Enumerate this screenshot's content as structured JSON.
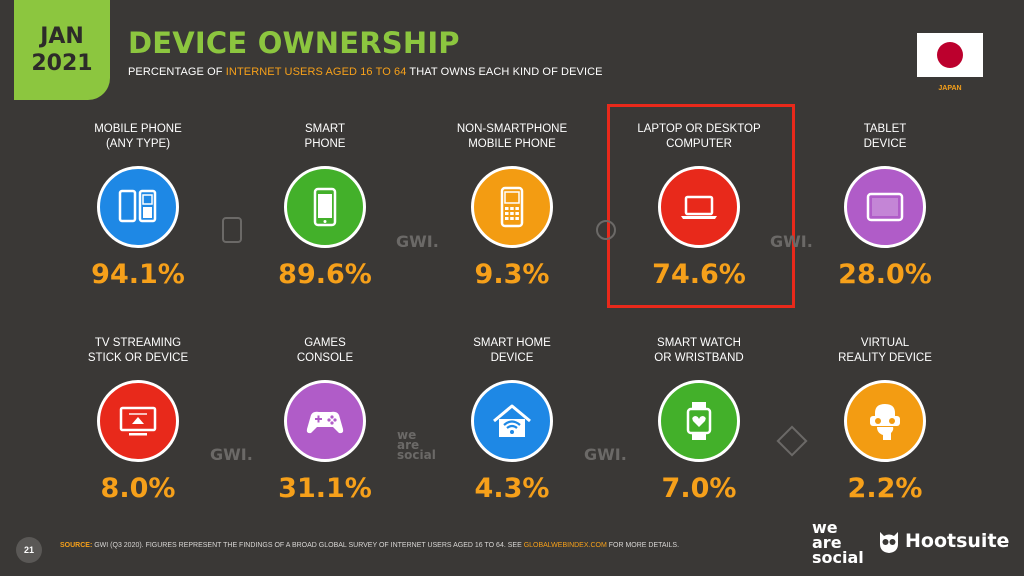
{
  "header": {
    "month": "JAN",
    "year": "2021",
    "title": "DEVICE OWNERSHIP",
    "subtitle_pre": "PERCENTAGE OF ",
    "subtitle_hl": "INTERNET USERS AGED 16 TO 64",
    "subtitle_post": " THAT OWNS EACH KIND OF DEVICE",
    "country": "JAPAN"
  },
  "colors": {
    "accent_green": "#8cc63f",
    "accent_orange": "#f6a01a",
    "highlight_red": "#e8291b",
    "background": "#3a3836"
  },
  "devices": [
    {
      "label1": "MOBILE PHONE",
      "label2": "(ANY TYPE)",
      "value": "94.1%",
      "color": "#1e88e5",
      "icon": "mobile-phones-icon"
    },
    {
      "label1": "SMART",
      "label2": "PHONE",
      "value": "89.6%",
      "color": "#43b02a",
      "icon": "smartphone-icon"
    },
    {
      "label1": "NON-SMARTPHONE",
      "label2": "MOBILE PHONE",
      "value": "9.3%",
      "color": "#f39c12",
      "icon": "feature-phone-icon"
    },
    {
      "label1": "LAPTOP OR DESKTOP",
      "label2": "COMPUTER",
      "value": "74.6%",
      "color": "#e8291b",
      "icon": "laptop-icon"
    },
    {
      "label1": "TABLET",
      "label2": "DEVICE",
      "value": "28.0%",
      "color": "#b05cc8",
      "icon": "tablet-icon"
    },
    {
      "label1": "TV STREAMING",
      "label2": "STICK OR DEVICE",
      "value": "8.0%",
      "color": "#e8291b",
      "icon": "tv-streaming-icon"
    },
    {
      "label1": "GAMES",
      "label2": "CONSOLE",
      "value": "31.1%",
      "color": "#b05cc8",
      "icon": "gamepad-icon"
    },
    {
      "label1": "SMART HOME",
      "label2": "DEVICE",
      "value": "4.3%",
      "color": "#1e88e5",
      "icon": "smart-home-icon"
    },
    {
      "label1": "SMART WATCH",
      "label2": "OR WRISTBAND",
      "value": "7.0%",
      "color": "#43b02a",
      "icon": "smartwatch-icon"
    },
    {
      "label1": "VIRTUAL",
      "label2": "REALITY DEVICE",
      "value": "2.2%",
      "color": "#f39c12",
      "icon": "vr-headset-icon"
    }
  ],
  "watermarks": {
    "gwi": "GWI.",
    "we": "we",
    "are": "are",
    "social": "social"
  },
  "footer": {
    "page": "21",
    "source_key": "SOURCE:",
    "source_text": " GWI (Q3 2020). FIGURES REPRESENT THE FINDINGS OF A BROAD GLOBAL SURVEY OF INTERNET USERS AGED 16 TO 64. SEE ",
    "source_link": "GLOBALWEBINDEX.COM",
    "source_end": " FOR MORE DETAILS.",
    "brand1_a": "we",
    "brand1_b": "are",
    "brand1_c": "social",
    "brand2": "Hootsuite"
  }
}
